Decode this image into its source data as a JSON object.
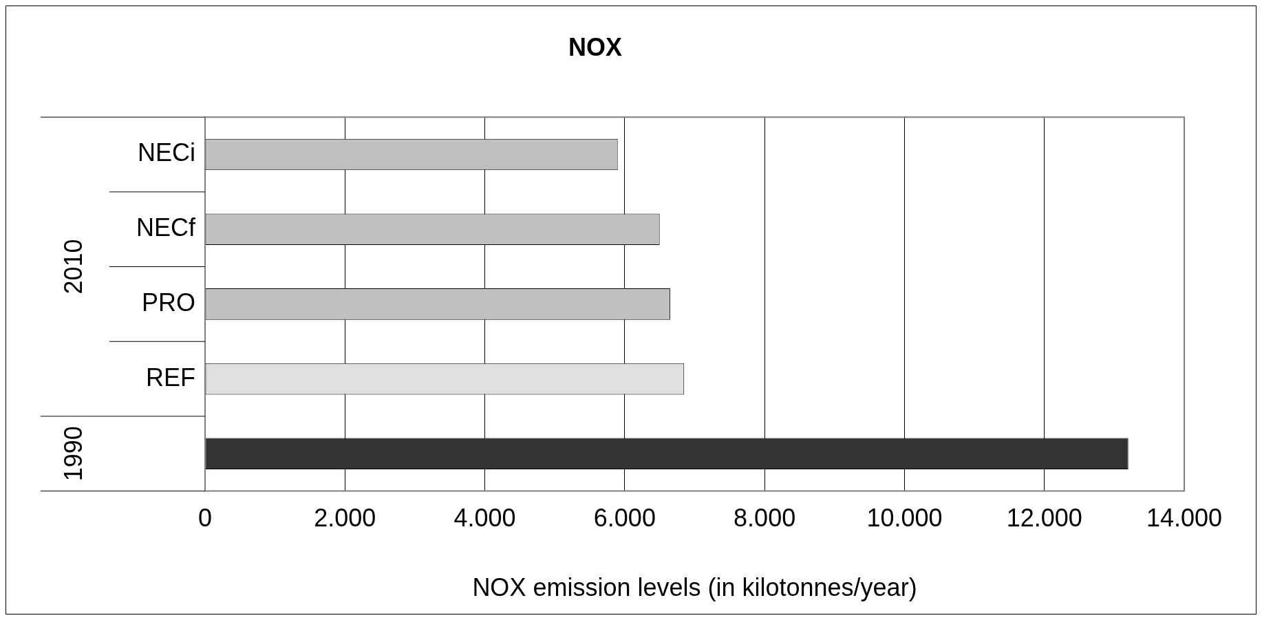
{
  "chart_data": {
    "type": "bar",
    "orientation": "horizontal",
    "title": "NOX",
    "xlabel": "NOX emission levels (in kilotonnes/year)",
    "categories": [
      "NECi",
      "NECf",
      "PRO",
      "REF",
      null
    ],
    "values": [
      5900,
      6500,
      6650,
      6850,
      13200
    ],
    "colors": [
      "#c0c0c0",
      "#c0c0c0",
      "#c0c0c0",
      "#e0e0e0",
      "#333333"
    ],
    "xlim": [
      0,
      14000
    ],
    "xticks": [
      0,
      {
        "value": 2000,
        "label": "2.000"
      },
      {
        "value": 4000,
        "label": "4.000"
      },
      {
        "value": 6000,
        "label": "6.000"
      },
      {
        "value": 8000,
        "label": "8.000"
      },
      {
        "value": 10000,
        "label": "10.000"
      },
      {
        "value": 12000,
        "label": "12.000"
      },
      {
        "value": 14000,
        "label": "14.000"
      }
    ],
    "annotations": [
      "2010",
      "1990"
    ],
    "grid": "x",
    "legend": false
  }
}
